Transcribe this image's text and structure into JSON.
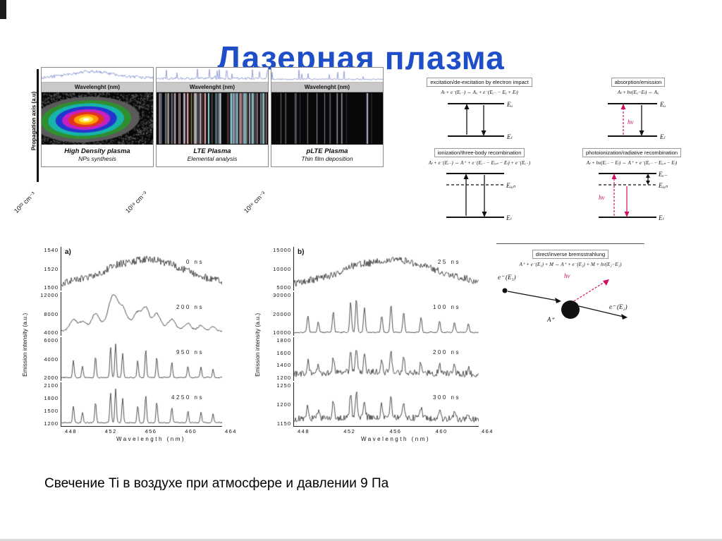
{
  "slide": {
    "title": "Лазерная плазма",
    "caption": "Свечение Ti  в воздухе при атмосфере и давлении 9 Па"
  },
  "plasma_figure": {
    "ylabel": "Propagation axis (a.u)",
    "col_header": "Wavelenght (nm)",
    "panels": [
      {
        "title": "High Density plasma",
        "subtitle": "NPs synthesis",
        "density_label": "10²² cm⁻³",
        "image_style": "rainbow-blob",
        "trace_style": "smooth"
      },
      {
        "title": "LTE Plasma",
        "subtitle": "Elemental analysis",
        "density_label": "10¹⁹ cm⁻³",
        "image_style": "line-forest",
        "trace_style": "spiky"
      },
      {
        "title": "pLTE Plasma",
        "subtitle": "Thin film deposition",
        "density_label": "10¹⁶ cm⁻³",
        "image_style": "sparse-lines",
        "trace_style": "sparse"
      }
    ]
  },
  "processes": {
    "excitation": {
      "title": "excitation/de-excitation by electron impact",
      "formula": "Aₗ + e⁻(Eₑ₋) ⇔ Aᵤ + e⁻(Eₑ₋ − Eᵤ + Eₗ)",
      "upper_label": "Eᵤ",
      "lower_label": "Eₗ"
    },
    "absorption": {
      "title": "absorption/emission",
      "formula": "Aₗ + hν(Eᵤ−Eₗ) ⇔ Aᵤ",
      "upper_label": "Eᵤ",
      "lower_label": "Eₗ",
      "photon_label": "hν"
    },
    "ionization": {
      "title": "ionization/three-body recombination",
      "formula": "Aₗ + e⁻(Eₑ₋) ⇔ A⁺ + e⁻(Eₑ₋ − Eᵢₒₙ − Eₗ) + e⁻(Eₑ₋)",
      "ion_label": "Eᵢₒₙ",
      "lower_label": "Eₗ"
    },
    "photoionization": {
      "title": "photoionization/radiative recombination",
      "formula": "Aₗ + hν(Eₑ₋ − Eₗ) ⇔ A⁺ + e⁻(Eₑ₋ − Eᵢₒₙ − Eₗ)",
      "free_label": "Eₑ₋",
      "ion_label": "Eᵢₒₙ",
      "lower_label": "Eₗ",
      "photon_label": "hν"
    },
    "bremsstrahlung": {
      "title": "direct/inverse bremsstrahlung",
      "formula": "A⁺ + e⁻(E₁) + M ⇔ A⁺ + e⁻(E₂) + M + hν(E₂−E₁)",
      "e_in_label": "e⁻ (E₁)",
      "ion_label": "A⁺",
      "e_out_label": "e⁻ (E₂)",
      "photon_label": "hν"
    }
  },
  "chart_data": [
    {
      "id": "spectra_a",
      "type": "line",
      "corner_label": "a)",
      "xlabel": "Wavelength (nm)",
      "ylabel": "Emission intensity (a.u.)",
      "xlim": [
        448,
        464
      ],
      "x_ticks": [
        "448",
        "452",
        "456",
        "460",
        "464"
      ],
      "panels": [
        {
          "label": "0 ns",
          "style": "continuum",
          "y_ticks": [
            "1540",
            "1520",
            "1500"
          ]
        },
        {
          "label": "200 ns",
          "style": "broad_peaks",
          "y_ticks": [
            "12000",
            "8000",
            "4000"
          ]
        },
        {
          "label": "950 ns",
          "style": "sharp_lines",
          "y_ticks": [
            "6000",
            "4000",
            "2000"
          ]
        },
        {
          "label": "4250 ns",
          "style": "sharp_lines",
          "y_ticks": [
            "2100",
            "1800",
            "1500",
            "1200"
          ]
        }
      ],
      "emission_line_positions_nm": [
        449.2,
        450.1,
        451.4,
        452.9,
        453.4,
        454.1,
        455.6,
        456.4,
        457.5,
        459.0,
        460.6,
        461.9,
        463.1
      ]
    },
    {
      "id": "spectra_b",
      "type": "line",
      "corner_label": "b)",
      "xlabel": "Wavelength (nm)",
      "ylabel": "Emission intensity (a.u.)",
      "xlim": [
        448,
        464
      ],
      "x_ticks": [
        "448",
        "452",
        "456",
        "460",
        "464"
      ],
      "panels": [
        {
          "label": "25 ns",
          "style": "continuum",
          "y_ticks": [
            "15000",
            "10000",
            "5000"
          ]
        },
        {
          "label": "100 ns",
          "style": "sharp_lines",
          "y_ticks": [
            "30000",
            "20000",
            "10000"
          ]
        },
        {
          "label": "200 ns",
          "style": "noisy_lines",
          "y_ticks": [
            "1800",
            "1600",
            "1400",
            "1200"
          ]
        },
        {
          "label": "300 ns",
          "style": "noisy_lines",
          "y_ticks": [
            "1250",
            "1200",
            "1150"
          ]
        }
      ],
      "emission_line_positions_nm": [
        449.2,
        450.1,
        451.4,
        452.9,
        453.4,
        454.1,
        455.6,
        456.4,
        457.5,
        459.0,
        460.6,
        461.9,
        463.1
      ]
    }
  ]
}
